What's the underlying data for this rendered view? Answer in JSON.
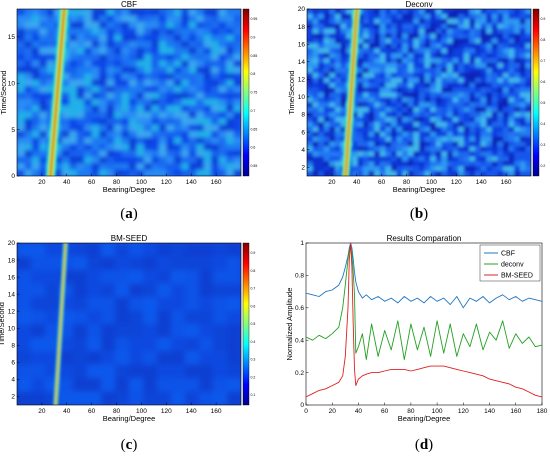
{
  "chart_data": [
    {
      "id": "a",
      "type": "heatmap",
      "title": "CBF",
      "xlabel": "Bearing/Degree",
      "ylabel": "Time/Second",
      "xticks": [
        "20",
        "40",
        "60",
        "80",
        "100",
        "120",
        "140",
        "160"
      ],
      "xlim": [
        0,
        180
      ],
      "yticks": [
        "0",
        "5",
        "10",
        "15"
      ],
      "ylim": [
        0,
        18
      ],
      "colorbar_ticks": [
        "0.95",
        "0.9",
        "0.85",
        "0.8",
        "0.75",
        "0.7",
        "0.65",
        "0.6",
        "0.55"
      ],
      "track": {
        "bearing_start": 27,
        "bearing_end": 38,
        "time_start": 0,
        "time_end": 18
      },
      "caption_label": "a"
    },
    {
      "id": "b",
      "type": "heatmap",
      "title": "Deconv",
      "xlabel": "Bearing/Degree",
      "ylabel": "Time/Second",
      "xticks": [
        "20",
        "40",
        "60",
        "80",
        "100",
        "120",
        "140",
        "160"
      ],
      "xlim": [
        0,
        180
      ],
      "yticks": [
        "2",
        "4",
        "6",
        "8",
        "10",
        "12",
        "14",
        "16",
        "18",
        "20"
      ],
      "ylim": [
        1,
        20
      ],
      "colorbar_ticks": [
        "0.9",
        "0.8",
        "0.7",
        "0.6",
        "0.5",
        "0.4",
        "0.3",
        "0.2"
      ],
      "track": {
        "bearing_start": 31,
        "bearing_end": 40,
        "time_start": 1,
        "time_end": 20
      },
      "caption_label": "b"
    },
    {
      "id": "c",
      "type": "heatmap",
      "title": "BM-SEED",
      "xlabel": "Bearing/Degree",
      "ylabel": "Time/Second",
      "xticks": [
        "20",
        "40",
        "60",
        "80",
        "100",
        "120",
        "140",
        "160"
      ],
      "xlim": [
        0,
        180
      ],
      "yticks": [
        "2",
        "4",
        "6",
        "8",
        "10",
        "12",
        "14",
        "16",
        "18",
        "20"
      ],
      "ylim": [
        1,
        20
      ],
      "colorbar_ticks": [
        "0.9",
        "0.8",
        "0.7",
        "0.6",
        "0.5",
        "0.4",
        "0.3",
        "0.2",
        "0.1"
      ],
      "track": {
        "bearing_start": 31,
        "bearing_end": 39,
        "time_start": 1,
        "time_end": 20
      },
      "caption_label": "c"
    },
    {
      "id": "d",
      "type": "line",
      "title": "Results Comparation",
      "xlabel": "Bearing/Degree",
      "ylabel": "Normalized Amplitude",
      "xlim": [
        0,
        180
      ],
      "ylim": [
        0,
        1
      ],
      "xticks": [
        "0",
        "20",
        "40",
        "60",
        "80",
        "100",
        "120",
        "140",
        "160",
        "180"
      ],
      "yticks": [
        "0",
        "0.2",
        "0.4",
        "0.6",
        "0.8",
        "1"
      ],
      "legend_position": "top-right",
      "x": [
        0,
        5,
        10,
        15,
        20,
        25,
        28,
        30,
        32,
        33,
        34,
        35,
        36,
        37,
        38,
        40,
        43,
        46,
        50,
        55,
        60,
        65,
        70,
        75,
        80,
        85,
        90,
        95,
        100,
        105,
        110,
        115,
        120,
        125,
        130,
        135,
        140,
        145,
        150,
        155,
        160,
        165,
        170,
        175,
        180
      ],
      "series": [
        {
          "name": "CBF",
          "color": "#1f77c4",
          "values": [
            0.69,
            0.68,
            0.67,
            0.7,
            0.71,
            0.74,
            0.79,
            0.85,
            0.92,
            0.97,
            1.0,
            0.97,
            0.9,
            0.82,
            0.76,
            0.7,
            0.66,
            0.68,
            0.65,
            0.67,
            0.64,
            0.66,
            0.63,
            0.67,
            0.64,
            0.66,
            0.63,
            0.67,
            0.64,
            0.66,
            0.62,
            0.67,
            0.6,
            0.66,
            0.64,
            0.67,
            0.63,
            0.66,
            0.68,
            0.65,
            0.67,
            0.64,
            0.66,
            0.65,
            0.64
          ]
        },
        {
          "name": "deconv",
          "color": "#22a022",
          "values": [
            0.42,
            0.4,
            0.43,
            0.41,
            0.44,
            0.48,
            0.6,
            0.74,
            0.9,
            0.96,
            0.98,
            0.93,
            0.82,
            0.68,
            0.32,
            0.36,
            0.44,
            0.28,
            0.5,
            0.3,
            0.46,
            0.34,
            0.52,
            0.28,
            0.5,
            0.34,
            0.48,
            0.3,
            0.52,
            0.32,
            0.5,
            0.3,
            0.44,
            0.36,
            0.5,
            0.34,
            0.45,
            0.4,
            0.52,
            0.35,
            0.44,
            0.38,
            0.42,
            0.36,
            0.37
          ]
        },
        {
          "name": "BM-SEED",
          "color": "#e02020",
          "values": [
            0.05,
            0.07,
            0.09,
            0.1,
            0.12,
            0.14,
            0.18,
            0.3,
            0.6,
            0.9,
            1.0,
            0.85,
            0.5,
            0.22,
            0.12,
            0.16,
            0.18,
            0.19,
            0.2,
            0.2,
            0.21,
            0.22,
            0.22,
            0.22,
            0.21,
            0.22,
            0.23,
            0.24,
            0.24,
            0.24,
            0.23,
            0.22,
            0.21,
            0.2,
            0.19,
            0.18,
            0.16,
            0.15,
            0.14,
            0.13,
            0.11,
            0.1,
            0.08,
            0.06,
            0.05
          ]
        }
      ],
      "caption_label": "d"
    }
  ]
}
